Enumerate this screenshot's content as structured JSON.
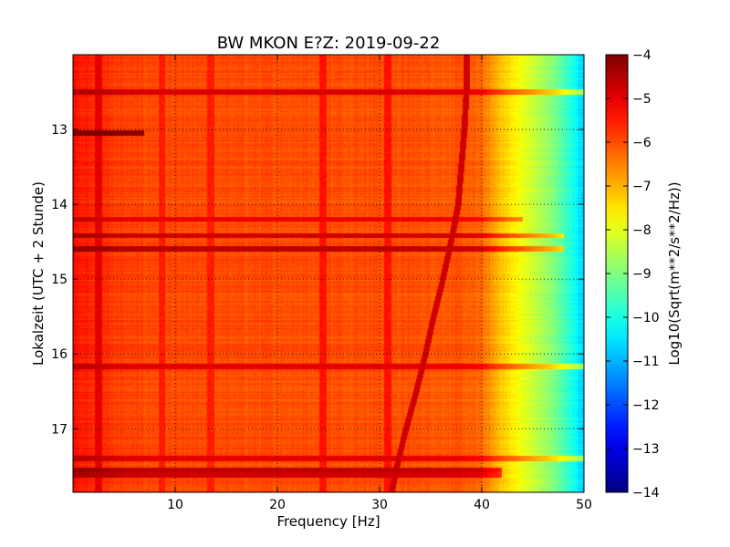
{
  "chart_data": {
    "type": "heatmap",
    "title": "BW MKON E?Z: 2019-09-22",
    "xlabel": "Frequency [Hz]",
    "ylabel": "Lokalzeit (UTC + 2 Stunde)",
    "colorbar_label": "Log10(Sqrt(m**2/s**2/Hz))",
    "xlim": [
      0,
      50
    ],
    "ylim": [
      17.85,
      12.0
    ],
    "x_ticks": [
      10,
      20,
      30,
      40,
      50
    ],
    "y_ticks": [
      13,
      14,
      15,
      16,
      17
    ],
    "grid": true,
    "colormap": "jet",
    "clim": [
      -14,
      -4
    ],
    "colorbar_ticks": [
      -4,
      -5,
      -6,
      -7,
      -8,
      -9,
      -10,
      -11,
      -12,
      -13,
      -14
    ],
    "frequency_profile": {
      "x": [
        0,
        2,
        5,
        10,
        20,
        30,
        38,
        40,
        41,
        42,
        43,
        44,
        45,
        46,
        47,
        48,
        49,
        50
      ],
      "values": [
        -5.4,
        -5.6,
        -5.9,
        -6.0,
        -6.0,
        -6.0,
        -6.1,
        -6.3,
        -6.8,
        -7.2,
        -7.6,
        -7.9,
        -8.3,
        -8.6,
        -9.0,
        -9.5,
        -10.1,
        -10.8
      ]
    },
    "tonal_line": {
      "time": [
        12.0,
        12.5,
        13.0,
        13.5,
        14.0,
        14.5,
        15.0,
        15.5,
        16.0,
        16.5,
        17.0,
        17.5,
        17.85
      ],
      "frequency": [
        38.5,
        38.5,
        38.3,
        38.0,
        37.7,
        37.0,
        36.2,
        35.3,
        34.5,
        33.6,
        32.6,
        31.7,
        31.2
      ],
      "level": -4.8
    },
    "horizontal_bands": [
      {
        "time": 12.5,
        "level": -4.9,
        "fmax": 50
      },
      {
        "time": 13.05,
        "level": -4.2,
        "fmax": 7
      },
      {
        "time": 14.2,
        "level": -5.1,
        "fmax": 44
      },
      {
        "time": 14.42,
        "level": -4.8,
        "fmax": 48
      },
      {
        "time": 14.6,
        "level": -4.6,
        "fmax": 48
      },
      {
        "time": 16.17,
        "level": -5.0,
        "fmax": 50
      },
      {
        "time": 17.4,
        "level": -5.0,
        "fmax": 50
      },
      {
        "time": 17.55,
        "level": -4.6,
        "fmax": 42
      },
      {
        "time": 17.62,
        "level": -4.8,
        "fmax": 42
      }
    ],
    "vertical_bands": [
      {
        "frequency": 2.5,
        "level": -5.0
      },
      {
        "frequency": 8.7,
        "level": -5.5
      },
      {
        "frequency": 13.5,
        "level": -5.5
      },
      {
        "frequency": 24.5,
        "level": -5.4
      },
      {
        "frequency": 30.8,
        "level": -5.4
      }
    ]
  }
}
